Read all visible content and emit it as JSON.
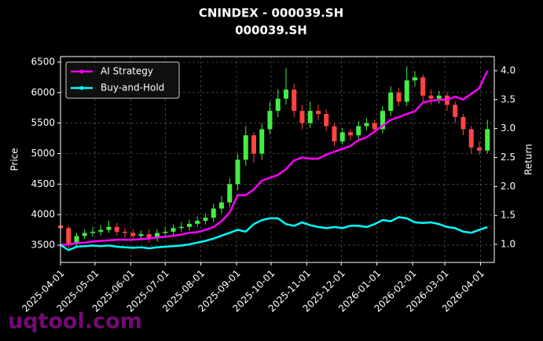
{
  "chart_data": {
    "type": "candlestick",
    "title": "CNINDEX - 000039.SH",
    "subtitle": "000039.SH",
    "ylabel": "Price",
    "y2label": "Return",
    "watermark": "uqtool.com",
    "x": [
      "2025-04-01",
      "2025-04-08",
      "2025-04-15",
      "2025-04-22",
      "2025-04-29",
      "2025-05-06",
      "2025-05-13",
      "2025-05-20",
      "2025-05-27",
      "2025-06-03",
      "2025-06-10",
      "2025-06-17",
      "2025-06-24",
      "2025-07-01",
      "2025-07-08",
      "2025-07-15",
      "2025-07-22",
      "2025-07-29",
      "2025-08-05",
      "2025-08-12",
      "2025-08-19",
      "2025-08-26",
      "2025-09-02",
      "2025-09-09",
      "2025-09-16",
      "2025-09-23",
      "2025-09-30",
      "2025-10-07",
      "2025-10-14",
      "2025-10-21",
      "2025-10-28",
      "2025-11-04",
      "2025-11-11",
      "2025-11-18",
      "2025-11-25",
      "2025-12-02",
      "2025-12-09",
      "2025-12-16",
      "2025-12-23",
      "2025-12-30",
      "2026-01-06",
      "2026-01-13",
      "2026-01-20",
      "2026-01-27",
      "2026-02-03",
      "2026-02-10",
      "2026-02-17",
      "2026-02-24",
      "2026-03-03",
      "2026-03-10",
      "2026-03-17",
      "2026-03-24",
      "2026-03-31",
      "2026-04-07"
    ],
    "open": [
      3820,
      3780,
      3520,
      3650,
      3700,
      3720,
      3750,
      3800,
      3720,
      3700,
      3650,
      3680,
      3620,
      3700,
      3720,
      3780,
      3800,
      3850,
      3900,
      3950,
      4100,
      4200,
      4500,
      4900,
      5300,
      5000,
      5400,
      5700,
      5900,
      6050,
      5700,
      5500,
      5700,
      5650,
      5450,
      5200,
      5350,
      5300,
      5450,
      5500,
      5400,
      5700,
      6000,
      5850,
      6200,
      6250,
      5950,
      5900,
      5950,
      5800,
      5600,
      5400,
      5100,
      5050
    ],
    "high": [
      3880,
      3820,
      3700,
      3760,
      3800,
      3830,
      3900,
      3860,
      3780,
      3760,
      3740,
      3760,
      3760,
      3800,
      3840,
      3880,
      3920,
      3970,
      4020,
      4180,
      4300,
      4600,
      5000,
      5450,
      5350,
      5500,
      5850,
      6050,
      6400,
      6150,
      5800,
      5850,
      5800,
      5720,
      5500,
      5420,
      5400,
      5530,
      5580,
      5560,
      5780,
      6100,
      6080,
      6430,
      6350,
      6300,
      6050,
      6030,
      6000,
      5850,
      5650,
      5450,
      5200,
      5550
    ],
    "low": [
      3700,
      3450,
      3480,
      3600,
      3640,
      3660,
      3700,
      3660,
      3620,
      3580,
      3590,
      3540,
      3560,
      3640,
      3660,
      3720,
      3740,
      3800,
      3840,
      3880,
      4020,
      4120,
      4400,
      4800,
      4850,
      4900,
      5320,
      5600,
      5800,
      5600,
      5400,
      5420,
      5550,
      5380,
      5120,
      5150,
      5220,
      5240,
      5380,
      5330,
      5330,
      5620,
      5780,
      5780,
      6100,
      5850,
      5800,
      5820,
      5700,
      5500,
      5300,
      5000,
      4980,
      5000
    ],
    "close": [
      3780,
      3520,
      3650,
      3700,
      3720,
      3750,
      3800,
      3720,
      3700,
      3650,
      3680,
      3620,
      3700,
      3720,
      3780,
      3800,
      3850,
      3900,
      3950,
      4100,
      4200,
      4500,
      4900,
      5300,
      5000,
      5400,
      5700,
      5900,
      6050,
      5700,
      5500,
      5700,
      5650,
      5450,
      5200,
      5350,
      5300,
      5450,
      5500,
      5400,
      5700,
      6000,
      5850,
      6200,
      6250,
      5950,
      5900,
      5950,
      5800,
      5600,
      5400,
      5100,
      5050,
      5400
    ],
    "up_color": "#44ee44",
    "down_color": "#ff4444",
    "series": [
      {
        "name": "AI Strategy",
        "color": "#ff00ff",
        "axis": "y2",
        "values": [
          0.99,
          1.0,
          1.02,
          1.03,
          1.05,
          1.06,
          1.07,
          1.08,
          1.08,
          1.08,
          1.09,
          1.1,
          1.12,
          1.13,
          1.15,
          1.17,
          1.2,
          1.21,
          1.25,
          1.3,
          1.4,
          1.55,
          1.85,
          1.85,
          1.95,
          2.1,
          2.15,
          2.2,
          2.3,
          2.45,
          2.5,
          2.48,
          2.48,
          2.55,
          2.6,
          2.65,
          2.7,
          2.8,
          2.85,
          2.95,
          3.05,
          3.15,
          3.2,
          3.25,
          3.3,
          3.45,
          3.48,
          3.5,
          3.5,
          3.55,
          3.5,
          3.6,
          3.7,
          4.0
        ]
      },
      {
        "name": "Buy-and-Hold",
        "color": "#00ffff",
        "axis": "y2",
        "values": [
          0.99,
          0.9,
          0.96,
          0.97,
          0.98,
          0.97,
          0.98,
          0.96,
          0.95,
          0.94,
          0.95,
          0.93,
          0.95,
          0.96,
          0.97,
          0.98,
          1.0,
          1.03,
          1.06,
          1.1,
          1.15,
          1.2,
          1.25,
          1.22,
          1.35,
          1.42,
          1.45,
          1.45,
          1.35,
          1.32,
          1.38,
          1.33,
          1.3,
          1.28,
          1.3,
          1.28,
          1.32,
          1.32,
          1.3,
          1.35,
          1.42,
          1.4,
          1.47,
          1.45,
          1.38,
          1.37,
          1.38,
          1.35,
          1.3,
          1.28,
          1.22,
          1.2,
          1.25,
          1.3
        ]
      }
    ],
    "xlim": [
      "2025-04-01",
      "2026-04-13"
    ],
    "xticks": [
      "2025-04-01",
      "2025-05-01",
      "2025-06-01",
      "2025-07-01",
      "2025-08-01",
      "2025-09-01",
      "2025-10-01",
      "2025-11-01",
      "2025-12-01",
      "2026-01-01",
      "2026-02-01",
      "2026-03-01",
      "2026-04-01"
    ],
    "ylim": [
      3217,
      6590
    ],
    "yticks": [
      3500,
      4000,
      4500,
      5000,
      5500,
      6000,
      6500
    ],
    "y2lim": [
      0.688,
      4.244
    ],
    "y2ticks": [
      {
        "value": 1,
        "label": "1.0"
      },
      1.5,
      {
        "value": 2,
        "label": "2.0"
      },
      2.5,
      {
        "value": 3,
        "label": "3.0"
      },
      3.5,
      {
        "value": 4,
        "label": "4.0"
      }
    ],
    "grid": true,
    "legend": "upper left"
  }
}
